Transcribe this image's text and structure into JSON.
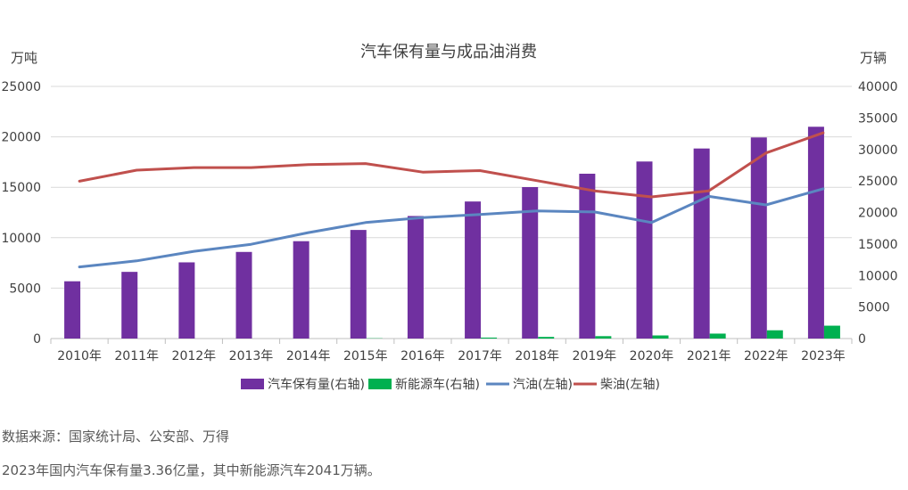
{
  "chart_data": {
    "type": "bar",
    "title": "汽车保有量与成品油消费",
    "left_axis_label": "万吨",
    "right_axis_label": "万辆",
    "left_ticks": [
      "0",
      "5000",
      "10000",
      "15000",
      "20000",
      "25000"
    ],
    "right_ticks": [
      "0",
      "5000",
      "10000",
      "15000",
      "20000",
      "25000",
      "30000",
      "35000",
      "40000"
    ],
    "left_ylim": [
      0,
      25000
    ],
    "right_ylim": [
      0,
      40000
    ],
    "categories": [
      "2010年",
      "2011年",
      "2012年",
      "2013年",
      "2014年",
      "2015年",
      "2016年",
      "2017年",
      "2018年",
      "2019年",
      "2020年",
      "2021年",
      "2022年",
      "2023年"
    ],
    "grid": true,
    "legend_position": "bottom",
    "series": [
      {
        "name": "汽车保有量(右轴)",
        "type": "bar",
        "axis": "right",
        "color": "#7030a0",
        "values": [
          9086,
          10578,
          12089,
          13741,
          15447,
          17228,
          19440,
          21743,
          24028,
          26150,
          28087,
          30151,
          31903,
          33600
        ]
      },
      {
        "name": "新能源车(右轴)",
        "type": "bar",
        "axis": "right",
        "color": "#00b050",
        "values": [
          0,
          0,
          0,
          0,
          0,
          42,
          0,
          153,
          261,
          381,
          492,
          784,
          1310,
          2041
        ]
      },
      {
        "name": "汽油(左轴)",
        "type": "line",
        "axis": "left",
        "color": "#5b86c0",
        "values": [
          7100,
          7700,
          8650,
          9350,
          10500,
          11500,
          12000,
          12300,
          12650,
          12550,
          11500,
          14100,
          13250,
          14850
        ]
      },
      {
        "name": "柴油(左轴)",
        "type": "line",
        "axis": "left",
        "color": "#c0504d",
        "values": [
          15600,
          16700,
          16950,
          16950,
          17250,
          17350,
          16500,
          16650,
          15650,
          14650,
          14050,
          14650,
          18400,
          20400
        ]
      }
    ]
  },
  "notes": {
    "source": "数据来源：国家统计局、公安部、万得",
    "summary": "2023年国内汽车保有量3.36亿量，其中新能源汽车2041万辆。"
  }
}
